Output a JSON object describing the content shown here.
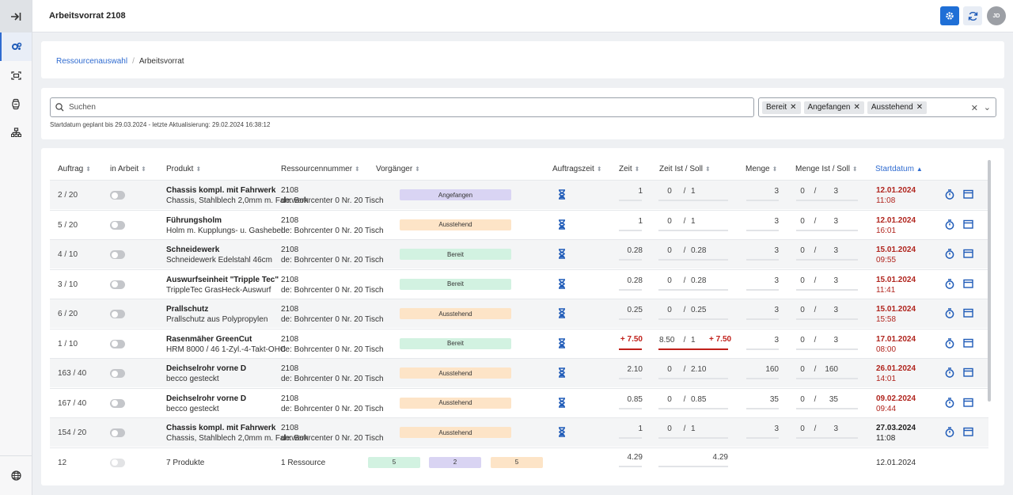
{
  "app": {
    "title": "Arbeitsvorrat 2108",
    "avatar": "JD"
  },
  "sidebar": {
    "collapse_icon": "collapse-right-icon",
    "items": [
      {
        "icon": "gears-icon",
        "active": true
      },
      {
        "icon": "scan-icon",
        "active": false
      },
      {
        "icon": "watch-icon",
        "active": false
      },
      {
        "icon": "hierarchy-icon",
        "active": false
      }
    ],
    "bottom_icon": "globe-icon"
  },
  "breadcrumb": {
    "first": "Ressourcenauswahl",
    "sep": "/",
    "current": "Arbeitsvorrat"
  },
  "search": {
    "placeholder": "Suchen"
  },
  "filters": {
    "chips": [
      "Bereit",
      "Angefangen",
      "Ausstehend"
    ]
  },
  "meta": "Startdatum geplant bis 29.03.2024 - letzte Aktualisierung: 29.02.2024 16:38:12",
  "columns": {
    "auftrag": "Auftrag",
    "in_arbeit": "in Arbeit",
    "produkt": "Produkt",
    "ressource": "Ressourcennummer",
    "vorgaenger": "Vorgänger",
    "auftragszeit": "Auftragszeit",
    "zeit": "Zeit",
    "zeit_ist_soll": "Zeit Ist / Soll",
    "menge": "Menge",
    "menge_ist_soll": "Menge Ist / Soll",
    "startdatum": "Startdatum"
  },
  "rows": [
    {
      "auftrag": "2 / 20",
      "name": "Chassis kompl. mit Fahrwerk",
      "desc": "Chassis, Stahlblech 2,0mm m. Fahrwerk",
      "res": "2108",
      "res_sub": "de: Bohrcenter 0 Nr. 20 Tisch",
      "status": "Angefangen",
      "zeit": "1",
      "ist": "0",
      "sep": "/",
      "soll": "1",
      "extra": "",
      "menge": "3",
      "m_ist": "0",
      "m_sep": "/",
      "m_soll": "3",
      "date": "12.01.2024",
      "time": "11:08"
    },
    {
      "auftrag": "5 / 20",
      "name": "Führungsholm",
      "desc": "Holm m. Kupplungs- u. Gashebel",
      "res": "2108",
      "res_sub": "de: Bohrcenter 0 Nr. 20 Tisch",
      "status": "Ausstehend",
      "zeit": "1",
      "ist": "0",
      "sep": "/",
      "soll": "1",
      "extra": "",
      "menge": "3",
      "m_ist": "0",
      "m_sep": "/",
      "m_soll": "3",
      "date": "12.01.2024",
      "time": "16:01"
    },
    {
      "auftrag": "4 / 10",
      "name": "Schneidewerk",
      "desc": "Schneidewerk Edelstahl 46cm",
      "res": "2108",
      "res_sub": "de: Bohrcenter 0 Nr. 20 Tisch",
      "status": "Bereit",
      "zeit": "0.28",
      "ist": "0",
      "sep": "/",
      "soll": "0.28",
      "extra": "",
      "menge": "3",
      "m_ist": "0",
      "m_sep": "/",
      "m_soll": "3",
      "date": "15.01.2024",
      "time": "09:55"
    },
    {
      "auftrag": "3 / 10",
      "name": "Auswurfseinheit \"Tripple Tec\"",
      "desc": "TrippleTec GrasHeck-Auswurf",
      "res": "2108",
      "res_sub": "de: Bohrcenter 0 Nr. 20 Tisch",
      "status": "Bereit",
      "zeit": "0.28",
      "ist": "0",
      "sep": "/",
      "soll": "0.28",
      "extra": "",
      "menge": "3",
      "m_ist": "0",
      "m_sep": "/",
      "m_soll": "3",
      "date": "15.01.2024",
      "time": "11:41"
    },
    {
      "auftrag": "6 / 20",
      "name": "Prallschutz",
      "desc": "Prallschutz aus Polypropylen",
      "res": "2108",
      "res_sub": "de: Bohrcenter 0 Nr. 20 Tisch",
      "status": "Ausstehend",
      "zeit": "0.25",
      "ist": "0",
      "sep": "/",
      "soll": "0.25",
      "extra": "",
      "menge": "3",
      "m_ist": "0",
      "m_sep": "/",
      "m_soll": "3",
      "date": "15.01.2024",
      "time": "15:58"
    },
    {
      "auftrag": "1 / 10",
      "name": "Rasenmäher GreenCut",
      "desc": "HRM 8000 / 46 1-Zyl.-4-Takt-OHC",
      "res": "2108",
      "res_sub": "de: Bohrcenter 0 Nr. 20 Tisch",
      "status": "Bereit",
      "zeit": "+ 7.50",
      "ist": "8.50",
      "sep": "/",
      "soll": "1",
      "extra": "+ 7.50",
      "menge": "3",
      "m_ist": "0",
      "m_sep": "/",
      "m_soll": "3",
      "date": "17.01.2024",
      "time": "08:00",
      "over": true
    },
    {
      "auftrag": "163 / 40",
      "name": "Deichselrohr vorne D",
      "desc": "becco gesteckt",
      "res": "2108",
      "res_sub": "de: Bohrcenter 0 Nr. 20 Tisch",
      "status": "Ausstehend",
      "zeit": "2.10",
      "ist": "0",
      "sep": "/",
      "soll": "2.10",
      "extra": "",
      "menge": "160",
      "m_ist": "0",
      "m_sep": "/",
      "m_soll": "160",
      "date": "26.01.2024",
      "time": "14:01"
    },
    {
      "auftrag": "167 / 40",
      "name": "Deichselrohr vorne D",
      "desc": "becco gesteckt",
      "res": "2108",
      "res_sub": "de: Bohrcenter 0 Nr. 20 Tisch",
      "status": "Ausstehend",
      "zeit": "0.85",
      "ist": "0",
      "sep": "/",
      "soll": "0.85",
      "extra": "",
      "menge": "35",
      "m_ist": "0",
      "m_sep": "/",
      "m_soll": "35",
      "date": "09.02.2024",
      "time": "09:44"
    },
    {
      "auftrag": "154 / 20",
      "name": "Chassis kompl. mit Fahrwerk",
      "desc": "Chassis, Stahlblech 2,0mm m. Fahrwerk",
      "res": "2108",
      "res_sub": "de: Bohrcenter 0 Nr. 20 Tisch",
      "status": "Ausstehend",
      "zeit": "1",
      "ist": "0",
      "sep": "/",
      "soll": "1",
      "extra": "",
      "menge": "3",
      "m_ist": "0",
      "m_sep": "/",
      "m_soll": "3",
      "date": "27.03.2024",
      "time": "11:08",
      "dark": true
    }
  ],
  "summary": {
    "auftrag": "12",
    "produkte": "7 Produkte",
    "ressource": "1 Ressource",
    "bereit": "5",
    "angefangen": "2",
    "ausstehend": "5",
    "zeit": "4.29",
    "zeit_soll": "4.29",
    "date": "12.01.2024"
  },
  "colors": {
    "accent": "#2f6bd0",
    "date_red": "#b0241d",
    "over_red": "#c0201a"
  }
}
